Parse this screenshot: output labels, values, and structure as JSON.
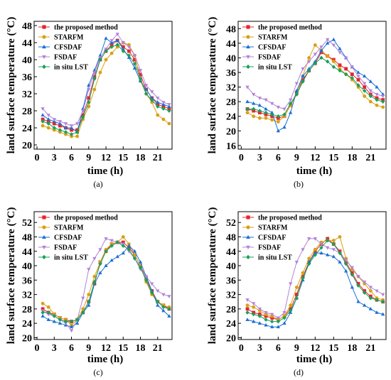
{
  "figure": {
    "series_names": [
      "the proposed method",
      "STARFM",
      "CFSDAF",
      "FSDAF",
      "in situ LST"
    ],
    "series_colors": [
      "#e8232b",
      "#d9a014",
      "#1a6fd6",
      "#b183d8",
      "#18a05a"
    ],
    "series_markers": [
      "square",
      "circle",
      "triangle-up",
      "triangle-down",
      "diamond"
    ],
    "xlabel": "time (h)",
    "ylabel": "land surface temperature (°C)"
  },
  "chart_data": [
    {
      "type": "line",
      "panel_label": "(a)",
      "xlabel": "time (h)",
      "ylabel": "land surface temperature (°C)",
      "x": [
        1,
        2,
        3,
        4,
        5,
        6,
        7,
        8,
        9,
        10,
        11,
        12,
        13,
        14,
        15,
        16,
        17,
        18,
        19,
        20,
        21,
        22,
        23
      ],
      "xlim": [
        -0.5,
        23.5
      ],
      "ylim": [
        19,
        49
      ],
      "xticks": [
        0,
        3,
        6,
        9,
        12,
        15,
        18,
        21
      ],
      "yticks": [
        20,
        24,
        28,
        32,
        36,
        40,
        44,
        48
      ],
      "grid": false,
      "legend": "top-left",
      "series": [
        {
          "name": "the proposed method",
          "values": [
            26,
            25.5,
            25,
            24.5,
            24,
            23.5,
            23.5,
            27,
            31,
            36,
            40,
            42,
            43.5,
            44.5,
            43,
            42,
            40,
            36.5,
            33,
            31,
            29.5,
            29,
            28.5
          ]
        },
        {
          "name": "STARFM",
          "values": [
            24.5,
            24,
            23.5,
            23,
            22.5,
            22,
            22,
            26,
            29,
            33,
            37,
            40,
            41.5,
            43,
            44,
            43.5,
            41,
            35,
            32,
            30,
            27,
            26,
            25
          ]
        },
        {
          "name": "CFSDAF",
          "values": [
            27,
            26,
            25.5,
            25,
            24,
            24,
            23,
            28.5,
            34,
            37.5,
            41,
            45,
            44,
            44.5,
            42.5,
            40.5,
            38,
            35,
            33,
            31,
            30,
            29.5,
            29
          ]
        },
        {
          "name": "FSDAF",
          "values": [
            28.5,
            27,
            26,
            25.5,
            25,
            24.5,
            25,
            28,
            33,
            37,
            40.5,
            42.5,
            44.5,
            46,
            44,
            43,
            41,
            37.5,
            34,
            32.5,
            31,
            30,
            29.5
          ]
        },
        {
          "name": "in situ LST",
          "values": [
            25.5,
            25,
            24,
            23.5,
            23,
            22.5,
            23,
            26.5,
            30,
            35.5,
            40,
            42,
            43,
            43.5,
            42,
            41,
            39,
            35.5,
            32,
            30.5,
            29,
            28.5,
            28
          ]
        }
      ]
    },
    {
      "type": "line",
      "panel_label": "(b)",
      "xlabel": "time (h)",
      "ylabel": "land surface temperature (°C)",
      "x": [
        1,
        2,
        3,
        4,
        5,
        6,
        7,
        8,
        9,
        10,
        11,
        12,
        13,
        14,
        15,
        16,
        17,
        18,
        19,
        20,
        21,
        22,
        23
      ],
      "xlim": [
        -0.5,
        23.5
      ],
      "ylim": [
        15,
        50
      ],
      "xticks": [
        0,
        3,
        6,
        9,
        12,
        15,
        18,
        21
      ],
      "yticks": [
        16,
        20,
        24,
        28,
        32,
        36,
        40,
        44,
        48
      ],
      "grid": false,
      "legend": "top-left",
      "series": [
        {
          "name": "the proposed method",
          "values": [
            26,
            25.5,
            25,
            24.5,
            24,
            23.5,
            24,
            27,
            30.5,
            34,
            36.5,
            38.5,
            41.5,
            40.5,
            39.5,
            38,
            37,
            35.5,
            34,
            32,
            30,
            29,
            28.5
          ]
        },
        {
          "name": "STARFM",
          "values": [
            25,
            24,
            23.5,
            23.5,
            23,
            22.5,
            24,
            27,
            30,
            35,
            40,
            43.5,
            42,
            40.5,
            39,
            37,
            35.5,
            34,
            32,
            29.5,
            28,
            27,
            26.5
          ]
        },
        {
          "name": "CFSDAF",
          "values": [
            28,
            27.5,
            27,
            26,
            25,
            20,
            21,
            25,
            31,
            35,
            37,
            39,
            42,
            44,
            45,
            42.5,
            40,
            37.5,
            36,
            35,
            33.5,
            32,
            30
          ]
        },
        {
          "name": "FSDAF",
          "values": [
            32,
            30,
            29,
            28.5,
            27.5,
            26.5,
            26,
            28.5,
            33,
            37,
            39,
            41,
            43,
            45,
            43.5,
            41.5,
            40,
            37.5,
            35,
            33,
            31,
            30,
            29.5
          ]
        },
        {
          "name": "in situ LST",
          "values": [
            26,
            26,
            25.5,
            25,
            24.5,
            24,
            24.5,
            27.5,
            30,
            33.5,
            36.5,
            38.5,
            40,
            39,
            37.5,
            36.5,
            35.5,
            34.5,
            32.5,
            31,
            29.5,
            28.5,
            28
          ]
        }
      ]
    },
    {
      "type": "line",
      "panel_label": "(c)",
      "xlabel": "time (h)",
      "ylabel": "land surface temperature (°C)",
      "x": [
        1,
        2,
        3,
        4,
        5,
        6,
        7,
        8,
        9,
        10,
        11,
        12,
        13,
        14,
        15,
        16,
        17,
        18,
        19,
        20,
        21,
        22,
        23
      ],
      "xlim": [
        -0.5,
        23.5
      ],
      "ylim": [
        19.5,
        55
      ],
      "xticks": [
        0,
        3,
        6,
        9,
        12,
        15,
        18,
        21
      ],
      "yticks": [
        20,
        24,
        28,
        32,
        36,
        40,
        44,
        48,
        52
      ],
      "grid": false,
      "legend": "top-left",
      "series": [
        {
          "name": "the proposed method",
          "values": [
            28,
            27,
            26.5,
            25.5,
            25,
            24.5,
            25,
            27,
            30,
            35,
            41,
            44,
            46,
            46.5,
            46.5,
            45,
            43,
            40,
            36.5,
            33,
            30,
            29,
            28
          ]
        },
        {
          "name": "STARFM",
          "values": [
            29.5,
            28.5,
            26.5,
            25.5,
            25,
            23.5,
            25,
            28,
            32,
            37,
            41,
            44.5,
            46,
            46.5,
            48,
            46,
            43,
            40,
            35.5,
            32,
            30,
            29,
            28.5
          ]
        },
        {
          "name": "CFSDAF",
          "values": [
            26,
            25,
            24.5,
            24,
            23.5,
            23,
            24,
            27,
            29,
            35,
            38,
            40,
            41.5,
            42.5,
            43.5,
            45.5,
            44,
            41,
            37,
            33,
            29,
            27.5,
            26
          ]
        },
        {
          "name": "FSDAF",
          "values": [
            27.5,
            26.5,
            26,
            25,
            24,
            22,
            25,
            31,
            39,
            42,
            44.5,
            47.5,
            47,
            46.5,
            46,
            44,
            42,
            39,
            37,
            35,
            33,
            32,
            31.5
          ]
        },
        {
          "name": "in situ LST",
          "values": [
            27,
            27,
            26,
            25,
            24.5,
            24.5,
            25,
            27,
            30,
            35.5,
            40.5,
            44,
            45.5,
            46.5,
            45.5,
            44.5,
            42,
            39.5,
            36,
            32.5,
            30,
            28.5,
            28
          ]
        }
      ]
    },
    {
      "type": "line",
      "panel_label": "(d)",
      "xlabel": "time (h)",
      "ylabel": "land surface temperature (°C)",
      "x": [
        1,
        2,
        3,
        4,
        5,
        6,
        7,
        8,
        9,
        10,
        11,
        12,
        13,
        14,
        15,
        16,
        17,
        18,
        19,
        20,
        21,
        22,
        23
      ],
      "xlim": [
        -0.5,
        23.5
      ],
      "ylim": [
        19.5,
        55
      ],
      "xticks": [
        0,
        3,
        6,
        9,
        12,
        15,
        18,
        21
      ],
      "yticks": [
        20,
        24,
        28,
        32,
        36,
        40,
        44,
        48,
        52
      ],
      "grid": false,
      "legend": "top-left",
      "series": [
        {
          "name": "the proposed method",
          "values": [
            28,
            27,
            26.5,
            26,
            25.5,
            25,
            26,
            28,
            32,
            37,
            41,
            44,
            46,
            47.5,
            46,
            44,
            41,
            38,
            35,
            33,
            31.5,
            30.5,
            30
          ]
        },
        {
          "name": "STARFM",
          "values": [
            29,
            28.5,
            27.5,
            26.5,
            26,
            25,
            26,
            29,
            34,
            38,
            42,
            44.5,
            46.5,
            47,
            47,
            48,
            42,
            39,
            37,
            35,
            33,
            31,
            30.5
          ]
        },
        {
          "name": "CFSDAF",
          "values": [
            25,
            24.5,
            24,
            23.5,
            23,
            23,
            24,
            27,
            31,
            36,
            41,
            43.5,
            43.5,
            43,
            42.5,
            41,
            38.5,
            34,
            30,
            29,
            28,
            27,
            26.5
          ]
        },
        {
          "name": "FSDAF",
          "values": [
            30.5,
            29.5,
            28,
            27,
            26.5,
            25.5,
            27,
            35,
            41,
            44.5,
            47.5,
            47.5,
            46,
            45,
            44.5,
            43.5,
            41.5,
            39.5,
            37,
            35.5,
            34,
            33,
            32
          ]
        },
        {
          "name": "in situ LST",
          "values": [
            27,
            26.5,
            26,
            25,
            24.5,
            24.5,
            25.5,
            27.5,
            31,
            36.5,
            40.5,
            43,
            45,
            47,
            46,
            43.5,
            40.5,
            37.5,
            34.5,
            32.5,
            31,
            30.5,
            30
          ]
        }
      ]
    }
  ]
}
